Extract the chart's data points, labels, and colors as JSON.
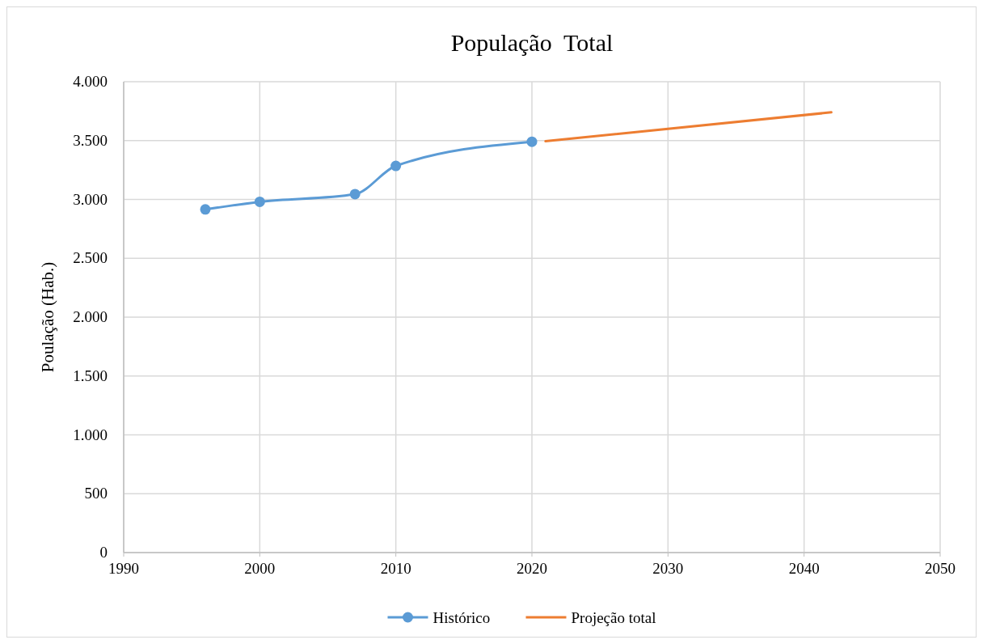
{
  "chart_data": {
    "type": "line",
    "title": "População  Total",
    "ylabel": "Poulação (Hab.)",
    "xlim": [
      1990,
      2050
    ],
    "xticks": [
      1990,
      2000,
      2010,
      2020,
      2030,
      2040,
      2050
    ],
    "ylim": [
      0,
      4000
    ],
    "yticks": [
      0,
      500,
      {
        "value": 1000,
        "label": "1.000"
      },
      {
        "value": 1500,
        "label": "1.500"
      },
      {
        "value": 2000,
        "label": "2.000"
      },
      {
        "value": 2500,
        "label": "2.500"
      },
      {
        "value": 3000,
        "label": "3.000"
      },
      {
        "value": 3500,
        "label": "3.500"
      },
      {
        "value": 4000,
        "label": "4.000"
      }
    ],
    "grid": true,
    "legend": "bottom",
    "series": [
      {
        "name": "Histórico",
        "color": "#5b9bd5",
        "marker": "circle",
        "x": [
          1996,
          2000,
          2007,
          2010,
          2020
        ],
        "values": [
          2915,
          2980,
          3045,
          3285,
          3490
        ]
      },
      {
        "name": "Projeção total",
        "color": "#ed7d31",
        "marker": "none",
        "x": [
          2021,
          2042
        ],
        "values": [
          3495,
          3740
        ]
      }
    ]
  }
}
